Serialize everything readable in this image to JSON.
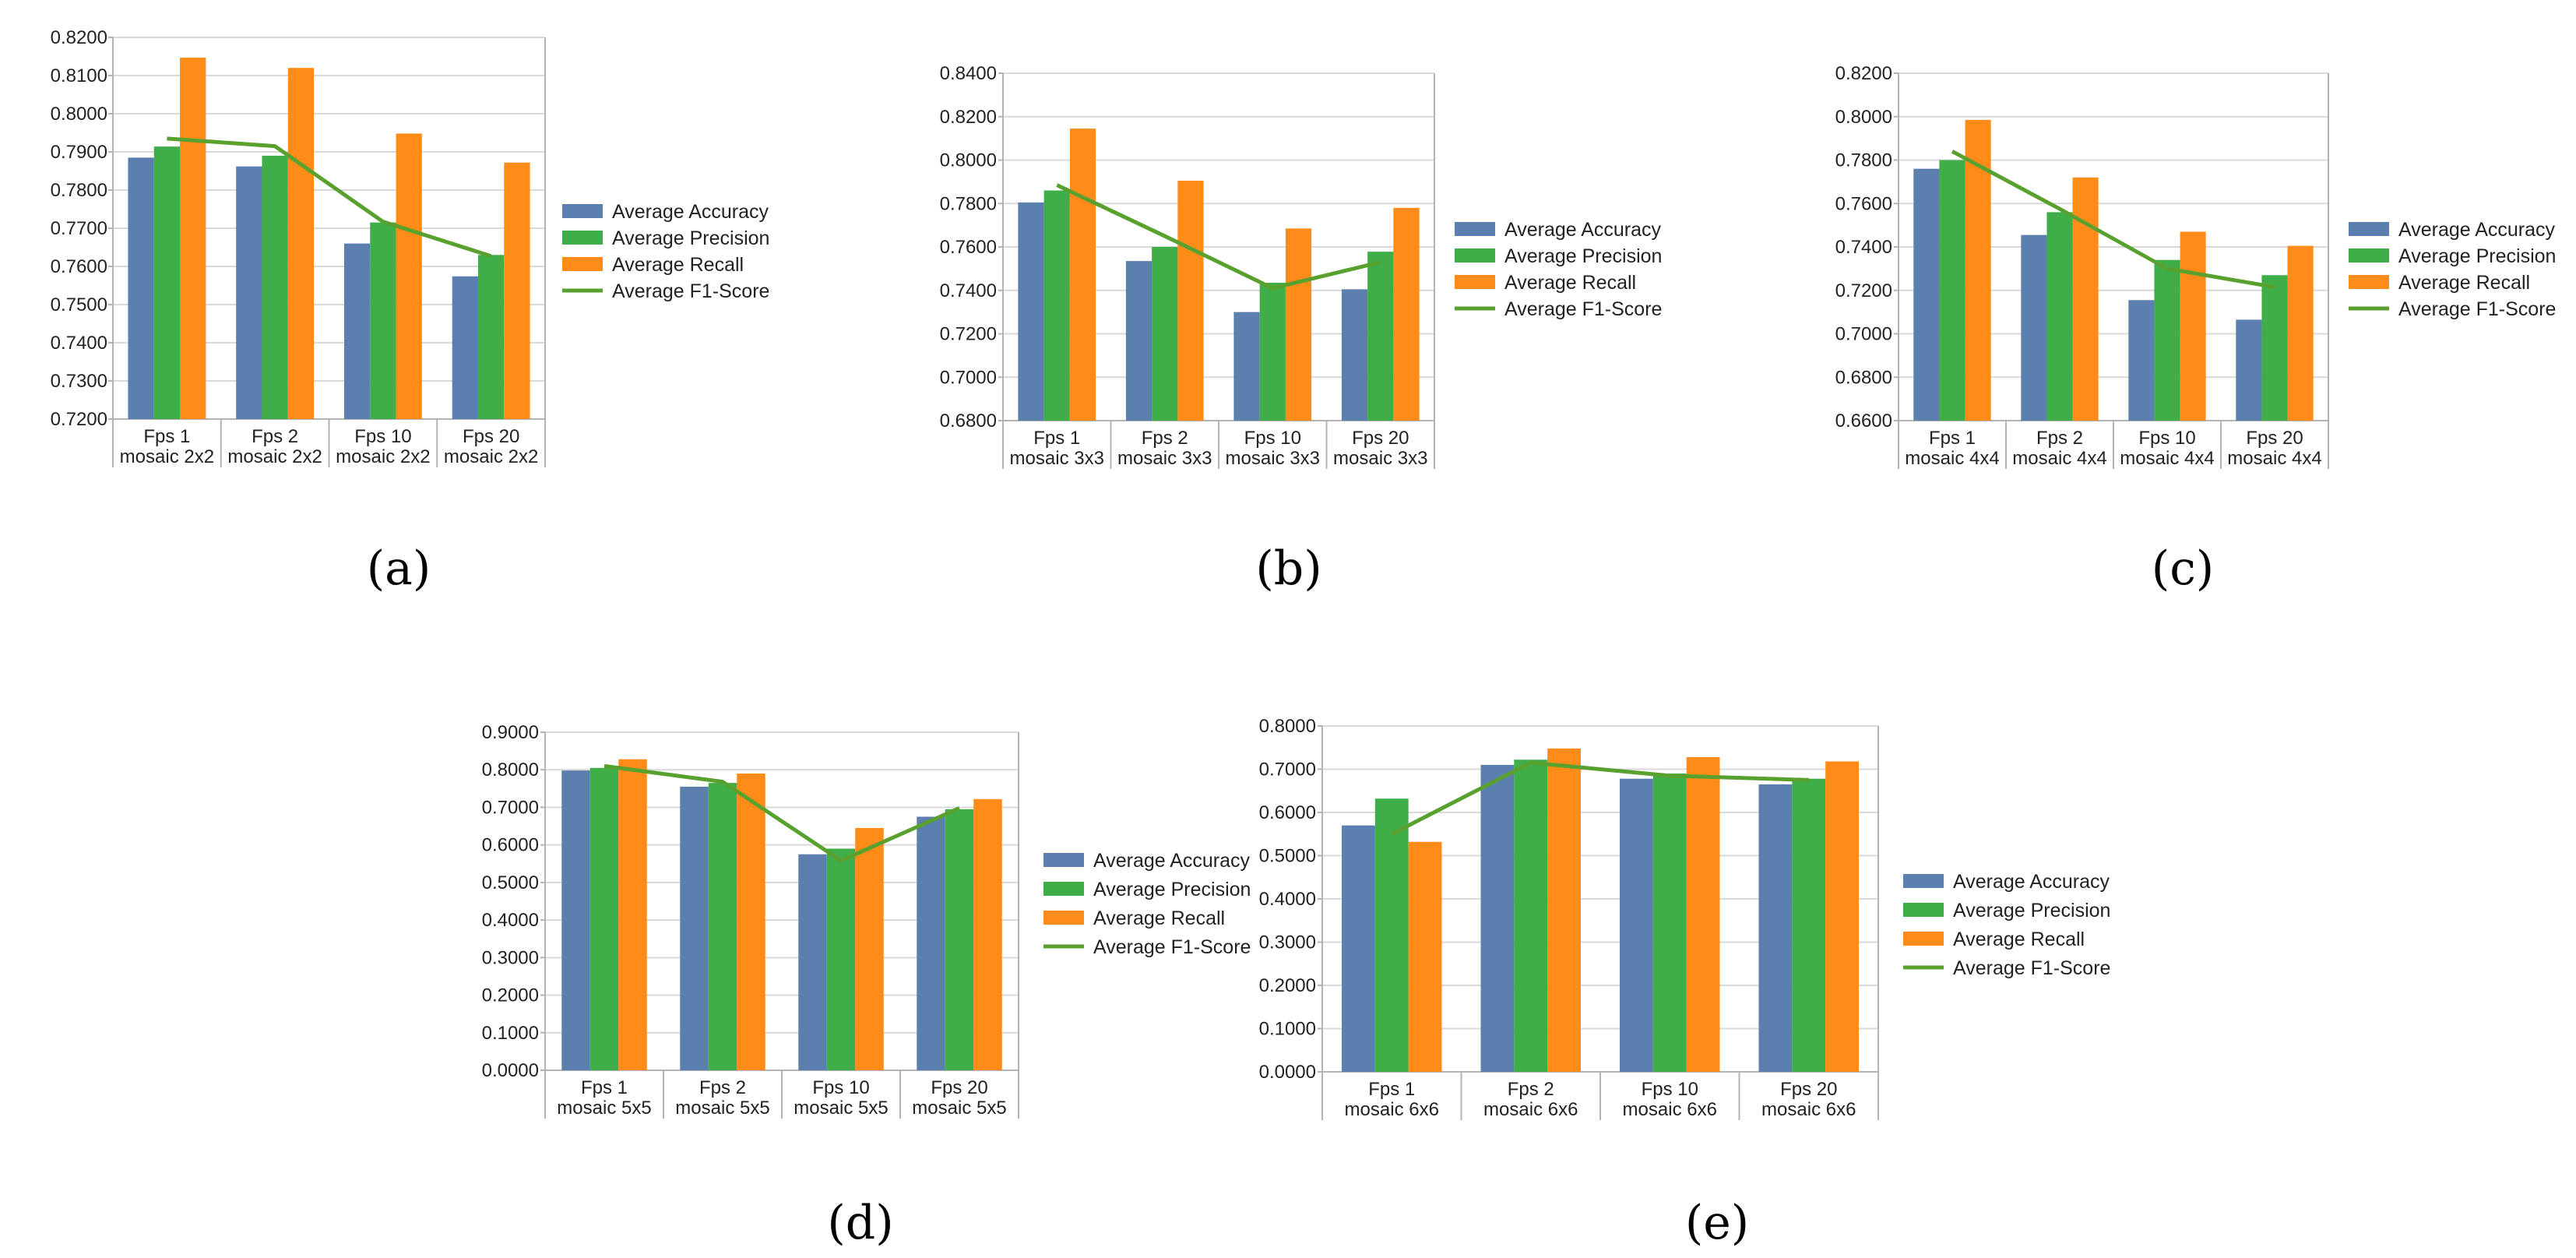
{
  "colors": {
    "accuracy": "#5b7fae",
    "precision": "#3fae49",
    "recall": "#ff8c19",
    "f1": "#59a12f"
  },
  "legend": [
    "Average Accuracy",
    "Average Precision",
    "Average Recall",
    "Average F1-Score"
  ],
  "chart_data": [
    {
      "type": "bar",
      "panel_label": "(a)",
      "categories": [
        [
          "Fps 1",
          "mosaic 2x2"
        ],
        [
          "Fps 2",
          "mosaic 2x2"
        ],
        [
          "Fps 10",
          "mosaic 2x2"
        ],
        [
          "Fps 20",
          "mosaic 2x2"
        ]
      ],
      "ylim": [
        0.72,
        0.82
      ],
      "ytick_step": 0.01,
      "ytick_labels": [
        "0.7200",
        "0.7300",
        "0.7400",
        "0.7500",
        "0.7600",
        "0.7700",
        "0.7800",
        "0.7900",
        "0.8000",
        "0.8100",
        "0.8200"
      ],
      "series": [
        {
          "name": "Average Accuracy",
          "kind": "bar",
          "values": [
            0.7885,
            0.7862,
            0.766,
            0.7574
          ]
        },
        {
          "name": "Average Precision",
          "kind": "bar",
          "values": [
            0.7914,
            0.789,
            0.7715,
            0.763
          ]
        },
        {
          "name": "Average Recall",
          "kind": "bar",
          "values": [
            0.8147,
            0.812,
            0.7948,
            0.7872
          ]
        },
        {
          "name": "Average F1-Score",
          "kind": "line",
          "values": [
            0.7935,
            0.7915,
            0.7717,
            0.7627
          ]
        }
      ]
    },
    {
      "type": "bar",
      "panel_label": "(b)",
      "categories": [
        [
          "Fps 1",
          "mosaic 3x3"
        ],
        [
          "Fps 2",
          "mosaic 3x3"
        ],
        [
          "Fps 10",
          "mosaic 3x3"
        ],
        [
          "Fps 20",
          "mosaic 3x3"
        ]
      ],
      "ylim": [
        0.68,
        0.84
      ],
      "ytick_step": 0.02,
      "ytick_labels": [
        "0.6800",
        "0.7000",
        "0.7200",
        "0.7400",
        "0.7600",
        "0.7800",
        "0.8000",
        "0.8200",
        "0.8400"
      ],
      "series": [
        {
          "name": "Average Accuracy",
          "kind": "bar",
          "values": [
            0.7805,
            0.7535,
            0.73,
            0.7405
          ]
        },
        {
          "name": "Average Precision",
          "kind": "bar",
          "values": [
            0.786,
            0.76,
            0.7435,
            0.7578
          ]
        },
        {
          "name": "Average Recall",
          "kind": "bar",
          "values": [
            0.8145,
            0.7905,
            0.7685,
            0.778
          ]
        },
        {
          "name": "Average F1-Score",
          "kind": "line",
          "values": [
            0.7885,
            0.765,
            0.741,
            0.753
          ]
        }
      ]
    },
    {
      "type": "bar",
      "panel_label": "(c)",
      "categories": [
        [
          "Fps 1",
          "mosaic 4x4"
        ],
        [
          "Fps 2",
          "mosaic 4x4"
        ],
        [
          "Fps 10",
          "mosaic 4x4"
        ],
        [
          "Fps 20",
          "mosaic 4x4"
        ]
      ],
      "ylim": [
        0.66,
        0.82
      ],
      "ytick_step": 0.02,
      "ytick_labels": [
        "0.6600",
        "0.6800",
        "0.7000",
        "0.7200",
        "0.7400",
        "0.7600",
        "0.7800",
        "0.8000",
        "0.8200"
      ],
      "series": [
        {
          "name": "Average Accuracy",
          "kind": "bar",
          "values": [
            0.776,
            0.7455,
            0.7155,
            0.7065
          ]
        },
        {
          "name": "Average Precision",
          "kind": "bar",
          "values": [
            0.78,
            0.756,
            0.734,
            0.727
          ]
        },
        {
          "name": "Average Recall",
          "kind": "bar",
          "values": [
            0.7985,
            0.772,
            0.747,
            0.7405
          ]
        },
        {
          "name": "Average F1-Score",
          "kind": "line",
          "values": [
            0.784,
            0.7575,
            0.73,
            0.7215
          ]
        }
      ]
    },
    {
      "type": "bar",
      "panel_label": "(d)",
      "categories": [
        [
          "Fps 1",
          "mosaic 5x5"
        ],
        [
          "Fps 2",
          "mosaic 5x5"
        ],
        [
          "Fps 10",
          "mosaic 5x5"
        ],
        [
          "Fps 20",
          "mosaic 5x5"
        ]
      ],
      "ylim": [
        0.0,
        0.9
      ],
      "ytick_step": 0.1,
      "ytick_labels": [
        "0.0000",
        "0.1000",
        "0.2000",
        "0.3000",
        "0.4000",
        "0.5000",
        "0.6000",
        "0.7000",
        "0.8000",
        "0.9000"
      ],
      "series": [
        {
          "name": "Average Accuracy",
          "kind": "bar",
          "values": [
            0.798,
            0.755,
            0.575,
            0.675
          ]
        },
        {
          "name": "Average Precision",
          "kind": "bar",
          "values": [
            0.805,
            0.765,
            0.59,
            0.695
          ]
        },
        {
          "name": "Average Recall",
          "kind": "bar",
          "values": [
            0.828,
            0.79,
            0.645,
            0.722
          ]
        },
        {
          "name": "Average F1-Score",
          "kind": "line",
          "values": [
            0.81,
            0.768,
            0.558,
            0.698
          ]
        }
      ]
    },
    {
      "type": "bar",
      "panel_label": "(e)",
      "categories": [
        [
          "Fps 1",
          "mosaic 6x6"
        ],
        [
          "Fps 2",
          "mosaic 6x6"
        ],
        [
          "Fps 10",
          "mosaic 6x6"
        ],
        [
          "Fps 20",
          "mosaic 6x6"
        ]
      ],
      "ylim": [
        0.0,
        0.8
      ],
      "ytick_step": 0.1,
      "ytick_labels": [
        "0.0000",
        "0.1000",
        "0.2000",
        "0.3000",
        "0.4000",
        "0.5000",
        "0.6000",
        "0.7000",
        "0.8000"
      ],
      "series": [
        {
          "name": "Average Accuracy",
          "kind": "bar",
          "values": [
            0.57,
            0.71,
            0.678,
            0.665
          ]
        },
        {
          "name": "Average Precision",
          "kind": "bar",
          "values": [
            0.632,
            0.722,
            0.69,
            0.678
          ]
        },
        {
          "name": "Average Recall",
          "kind": "bar",
          "values": [
            0.532,
            0.748,
            0.728,
            0.718
          ]
        },
        {
          "name": "Average F1-Score",
          "kind": "line",
          "values": [
            0.55,
            0.715,
            0.685,
            0.675
          ]
        }
      ]
    }
  ]
}
